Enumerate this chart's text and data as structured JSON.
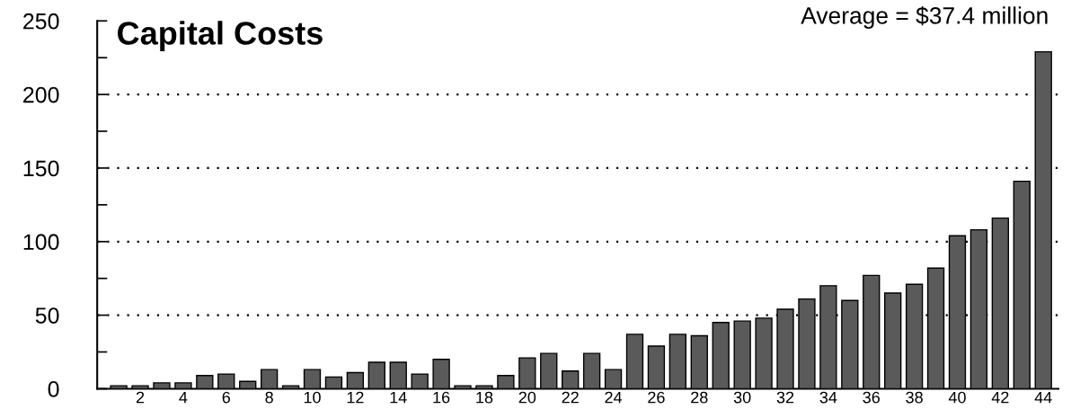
{
  "chart_data": {
    "type": "bar",
    "title": "Capital Costs",
    "annotations": [
      "Average = $37.4 million"
    ],
    "categories": [
      null,
      "2",
      null,
      "4",
      null,
      "6",
      null,
      "8",
      null,
      "10",
      null,
      "12",
      null,
      "14",
      null,
      "16",
      null,
      "18",
      null,
      "20",
      null,
      "22",
      null,
      "24",
      null,
      "26",
      null,
      "28",
      null,
      "30",
      null,
      "32",
      null,
      "34",
      null,
      "36",
      null,
      "38",
      null,
      "40",
      null,
      "42",
      null,
      "44"
    ],
    "values": [
      2,
      2,
      4,
      4,
      9,
      10,
      5,
      13,
      2,
      13,
      8,
      11,
      18,
      18,
      10,
      20,
      2,
      2,
      9,
      21,
      24,
      12,
      24,
      13,
      37,
      29,
      37,
      36,
      45,
      46,
      48,
      54,
      61,
      70,
      60,
      77,
      65,
      71,
      82,
      104,
      108,
      116,
      141,
      229
    ],
    "color": "#5a5a5a",
    "ylim": [
      0,
      250
    ],
    "yticks": [
      0,
      {
        "value": 25,
        "label": null
      },
      50,
      {
        "value": 75,
        "label": null
      },
      100,
      {
        "value": 125,
        "label": null
      },
      150,
      {
        "value": 175,
        "label": null
      },
      200,
      {
        "value": 225,
        "label": null
      },
      250
    ],
    "grid": "y"
  }
}
